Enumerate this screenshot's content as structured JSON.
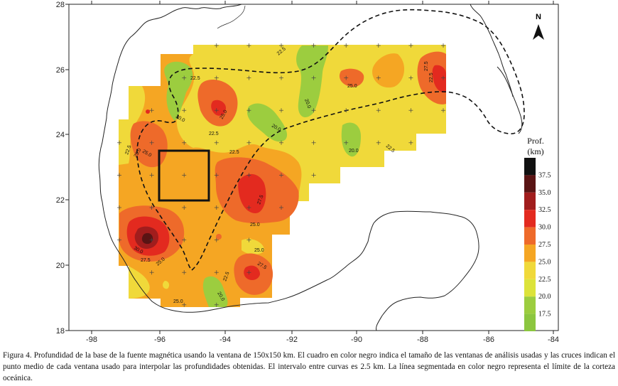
{
  "figure": {
    "caption": "Figura 4. Profundidad de la base de la fuente magnética usando la ventana de 150x150 km. El cuadro en color negro indica el tamaño de las ventanas de análisis usadas y las cruces indican el punto medio de cada ventana usado para interpolar las profundidades obtenidas. El intervalo entre curvas es 2.5 km. La línea segmentada en color negro representa el límite de la corteza oceánica.",
    "north_label": "N",
    "x_ticks": [
      "-98",
      "-96",
      "-94",
      "-92",
      "-90",
      "-88",
      "-86",
      "-84"
    ],
    "y_ticks": [
      "28",
      "26",
      "24",
      "22",
      "20",
      "18"
    ],
    "legend": {
      "title_line1": "Prof.",
      "title_line2": "(km)",
      "levels": [
        {
          "label": "37.5",
          "color": "#111111"
        },
        {
          "label": "35.0",
          "color": "#5a1414"
        },
        {
          "label": "32.5",
          "color": "#a11d1d"
        },
        {
          "label": "30.0",
          "color": "#e32a1f"
        },
        {
          "label": "27.5",
          "color": "#ee6a2a"
        },
        {
          "label": "25.0",
          "color": "#f5a623"
        },
        {
          "label": "22.5",
          "color": "#f0d93a"
        },
        {
          "label": "20.0",
          "color": "#dce33a"
        },
        {
          "label": "17.5",
          "color": "#9ccd3f"
        }
      ],
      "bottom_color": "#8cc63f"
    },
    "contour_labels": [
      "22.5",
      "27.5",
      "25.0",
      "22.5",
      "20.0",
      "25.0",
      "20.0",
      "25.0",
      "22.5",
      "20.0",
      "22.5",
      "22.5",
      "25.0",
      "22.5",
      "20.0",
      "22.5",
      "27.5",
      "25.0",
      "30.0",
      "27.5",
      "25.0",
      "25.0",
      "27.5",
      "22.5",
      "20.0",
      "25.0"
    ]
  }
}
